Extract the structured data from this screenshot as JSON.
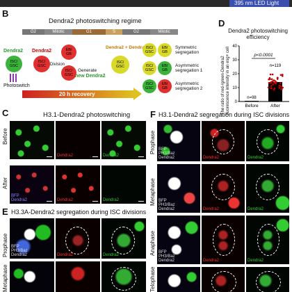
{
  "top": {
    "led_label": "395 nm LED Light"
  },
  "panel_b": {
    "letter": "B",
    "title": "Dendra2 photoswitching regime",
    "phases": [
      "G2",
      "Mitotic",
      "G1",
      "S",
      "G2",
      "Mitotic"
    ],
    "green_top": "Dendra2",
    "red_top": "Dendra2",
    "red_mid": "Dendra2",
    "isc": "ISC/",
    "gsc": "GSC",
    "eb": "EB/",
    "gb": "GB",
    "photoswitch": "Photoswitch",
    "division": "Division",
    "generate": "Generate",
    "new_dendra": "new Dendra2",
    "mix_top": "Dendra2 + Dendra2",
    "recovery": "20 h recovery",
    "outcomes": [
      "Symmetric segregation",
      "Asymmetric segregation 1",
      "Asymmetric segregation 2"
    ]
  },
  "panel_c": {
    "letter": "C",
    "title": "H3.1-Dendra2 photoswitching",
    "rows": [
      "Before",
      "After"
    ],
    "tiles": [
      "BFP Dendra2",
      "Dendra2",
      "Dendra2"
    ]
  },
  "panel_d": {
    "letter": "D",
    "title": "Dendra2 photoswitching efficiency",
    "ylabel": "The ratio of red-/green-Dendra2 fluorescence intensity in an esg+ cell",
    "pvalue": "p<0.0001",
    "yticks": [
      "40",
      "30",
      "20",
      "10",
      "0"
    ]
  },
  "panel_e": {
    "letter": "E",
    "title": "H3.3A-Dendra2 segregation  during ISC divisions",
    "rows": [
      "Prophase",
      "Metaphase"
    ],
    "tiles": [
      "BFP PH3/Baz Dendra2",
      "Dendra2",
      "Dendra2"
    ]
  },
  "panel_f": {
    "letter": "F",
    "title": "H3.1-Dendra2 segregation during ISC divisions",
    "rows": [
      "Prophase",
      "Metaphase",
      "Anaphase",
      "Telophase"
    ],
    "tiles": [
      "BFP PH3/Baz Dendra2",
      "Dendra2",
      "Dendra2"
    ]
  },
  "chart_data": {
    "type": "bar",
    "categories": [
      "Before",
      "After"
    ],
    "values": [
      0.5,
      14
    ],
    "n_labels": [
      "n=98",
      "n=119"
    ],
    "title": "Dendra2 photoswitching efficiency",
    "ylabel": "The ratio of red-/green-Dendra2 fluorescence intensity in an esg+ cell",
    "ylim": [
      0,
      40
    ],
    "annotation": "p<0.0001",
    "colors": {
      "bar": "#000000",
      "points": "#c80000"
    }
  }
}
